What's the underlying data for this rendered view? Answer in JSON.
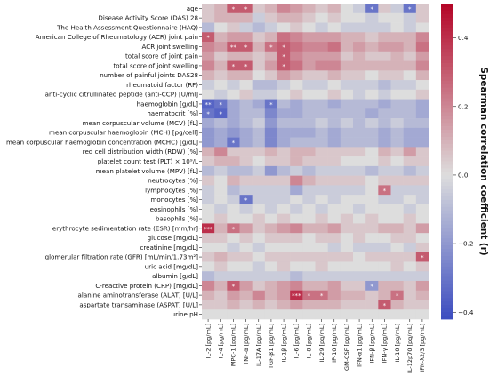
{
  "chart_data": {
    "type": "heatmap",
    "rows": [
      "age",
      "Disease Activity Score (DAS) 28",
      "The Health Assessment Questionnaire (HAQ)",
      "American College of Rheumatology (ACR) joint pain",
      "ACR joint swelling",
      "total score of  joint pain",
      "total score of joint swelling",
      "number of painful joints DAS28",
      "rheumatoid factor (RF)",
      "anti-cyclic citrullinated peptide (anti-CCP) [U/ml]",
      "haemoglobin [g/dL]",
      "haematocrit [%]",
      "mean corpuscular volume (MCV) [fL]",
      "mean corpuscular haemoglobin (MCH) [pg/cell]",
      "mean corpuscular haemoglobin concentration (MCHC) [g/dL]",
      "red cell distribution width (RDW) [%]",
      "platelet count test (PLT) × 10⁹/L",
      "mean platelet volume (MPV) [fL]",
      "neutrocytes [%]",
      "lymphocytes [%]",
      "monocytes [%]",
      "eosinophils [%]",
      "basophils [%]",
      "erythrocyte sedimentation rate (ESR) [mm/hr]",
      "glucose [mg/dL]",
      "creatinine [mg/dL]",
      "glomerular filtration rate (GFR) [mL/min/1.73m²]",
      "uric acid [mg/dL]",
      "albumin [g/dL]",
      "C-reactive protein (CRP) [mg/dL]",
      "alanine aminotransferase (ALAT)  [U/L]",
      "aspartate transaminase (ASPAT) [U/L]",
      "urine pH"
    ],
    "columns": [
      "IL-2 [pg/mL]",
      "IL-4 [pg/mL]",
      "MPC-1 [pg/mL]",
      "TNF-α [pg/mL]",
      "IL-17A [pg/mL]",
      "TGF-β1 [pg/mL]",
      "IL-1β [pg/mL]",
      "IL-6 [pg/mL]",
      "IL-8 [pg/mL]",
      "IL-29 [pg/mL]",
      "IP-10 [pg/mL]",
      "GM-CSF [pg/mL]",
      "IFN-α1 [pg/mL]",
      "IFN-β [pg/mL]",
      "IFN-γ [pg/mL]",
      "IL-10 [pg/mL]",
      "IL-12p70 [pg/mL]",
      "IFN-λ2/3 [pg/mL]"
    ],
    "values": [
      [
        0.05,
        0.1,
        0.3,
        0.3,
        0.05,
        0.1,
        0.2,
        0.15,
        0.1,
        0.05,
        0.1,
        0.0,
        -0.05,
        -0.3,
        0.05,
        -0.05,
        -0.3,
        0.05
      ],
      [
        0.05,
        0.1,
        0.1,
        0.1,
        -0.05,
        0.05,
        0.1,
        0.1,
        0.05,
        0.0,
        0.05,
        0.0,
        0.0,
        -0.05,
        0.0,
        0.0,
        -0.05,
        0.05
      ],
      [
        -0.1,
        0.0,
        0.05,
        -0.05,
        -0.1,
        -0.05,
        0.0,
        0.05,
        0.0,
        -0.05,
        0.0,
        -0.05,
        -0.05,
        -0.05,
        -0.05,
        0.0,
        -0.05,
        0.0
      ],
      [
        0.3,
        0.1,
        0.15,
        0.15,
        0.05,
        0.1,
        0.25,
        0.2,
        0.15,
        0.15,
        0.15,
        0.1,
        0.1,
        0.05,
        0.1,
        0.1,
        0.1,
        0.2
      ],
      [
        0.2,
        0.15,
        0.3,
        0.3,
        0.1,
        0.25,
        0.3,
        0.25,
        0.2,
        0.2,
        0.25,
        0.1,
        0.15,
        0.1,
        0.15,
        0.15,
        0.1,
        0.25
      ],
      [
        0.15,
        0.05,
        0.1,
        0.1,
        0.05,
        0.1,
        0.3,
        0.2,
        0.15,
        0.15,
        0.15,
        0.05,
        0.1,
        0.05,
        0.05,
        0.1,
        0.05,
        0.15
      ],
      [
        0.2,
        0.1,
        0.3,
        0.3,
        0.05,
        0.15,
        0.3,
        0.25,
        0.15,
        0.2,
        0.2,
        0.1,
        0.1,
        0.1,
        0.1,
        0.1,
        0.1,
        0.2
      ],
      [
        0.1,
        0.05,
        0.1,
        0.1,
        0.0,
        0.05,
        0.15,
        0.1,
        0.05,
        0.05,
        0.1,
        0.05,
        0.05,
        0.0,
        0.05,
        0.05,
        0.0,
        0.1
      ],
      [
        -0.05,
        0.0,
        -0.05,
        0.0,
        -0.1,
        -0.1,
        -0.05,
        0.0,
        -0.05,
        -0.05,
        0.0,
        -0.05,
        -0.05,
        -0.05,
        -0.1,
        -0.05,
        -0.05,
        0.0
      ],
      [
        0.0,
        -0.05,
        0.0,
        0.05,
        -0.05,
        -0.05,
        0.0,
        0.05,
        0.0,
        0.0,
        0.05,
        0.0,
        -0.05,
        0.0,
        -0.05,
        0.0,
        0.0,
        0.05
      ],
      [
        -0.35,
        -0.3,
        -0.15,
        -0.1,
        -0.15,
        -0.3,
        -0.1,
        -0.15,
        -0.1,
        -0.1,
        -0.15,
        -0.1,
        -0.1,
        -0.1,
        -0.15,
        -0.1,
        -0.1,
        -0.15
      ],
      [
        -0.3,
        -0.35,
        -0.15,
        -0.1,
        -0.1,
        -0.25,
        -0.15,
        -0.15,
        -0.1,
        -0.1,
        -0.1,
        -0.1,
        -0.1,
        -0.15,
        -0.1,
        -0.1,
        -0.1,
        -0.15
      ],
      [
        -0.15,
        -0.1,
        -0.15,
        -0.1,
        -0.05,
        -0.2,
        -0.1,
        -0.1,
        -0.1,
        -0.05,
        -0.1,
        -0.05,
        -0.1,
        -0.05,
        -0.1,
        -0.05,
        -0.1,
        -0.1
      ],
      [
        -0.2,
        -0.15,
        -0.2,
        -0.15,
        -0.1,
        -0.25,
        -0.15,
        -0.15,
        -0.15,
        -0.1,
        -0.15,
        -0.1,
        -0.1,
        -0.1,
        -0.15,
        -0.1,
        -0.15,
        -0.15
      ],
      [
        -0.2,
        -0.15,
        -0.3,
        -0.15,
        -0.1,
        -0.25,
        -0.15,
        -0.1,
        -0.1,
        -0.1,
        -0.15,
        -0.1,
        -0.1,
        -0.1,
        -0.15,
        -0.1,
        -0.15,
        -0.15
      ],
      [
        0.1,
        0.2,
        0.05,
        0.05,
        0.05,
        0.1,
        0.05,
        0.1,
        0.1,
        0.05,
        0.05,
        0.05,
        0.05,
        0.0,
        0.1,
        0.05,
        0.15,
        0.05
      ],
      [
        0.05,
        0.1,
        0.1,
        0.05,
        0.0,
        0.05,
        0.05,
        0.1,
        0.05,
        0.05,
        0.05,
        0.0,
        0.0,
        0.0,
        0.05,
        0.0,
        0.05,
        0.05
      ],
      [
        -0.1,
        -0.05,
        -0.1,
        -0.1,
        -0.05,
        -0.2,
        -0.1,
        -0.05,
        -0.1,
        -0.05,
        -0.05,
        -0.05,
        -0.05,
        -0.1,
        -0.05,
        -0.05,
        -0.1,
        -0.05
      ],
      [
        0.05,
        0.0,
        0.1,
        0.05,
        0.05,
        0.05,
        0.05,
        0.2,
        0.1,
        0.05,
        0.05,
        0.05,
        0.05,
        0.0,
        0.05,
        0.05,
        0.05,
        0.05
      ],
      [
        -0.05,
        0.0,
        -0.1,
        -0.05,
        -0.05,
        -0.05,
        -0.05,
        -0.15,
        -0.05,
        -0.05,
        -0.05,
        -0.05,
        -0.05,
        0.0,
        0.25,
        -0.05,
        -0.05,
        -0.05
      ],
      [
        -0.05,
        0.0,
        -0.05,
        -0.3,
        -0.05,
        -0.05,
        -0.05,
        0.0,
        -0.05,
        0.0,
        -0.05,
        0.0,
        0.0,
        0.0,
        -0.05,
        -0.05,
        0.0,
        -0.05
      ],
      [
        0.0,
        -0.05,
        0.0,
        -0.05,
        0.0,
        -0.05,
        0.0,
        -0.05,
        0.0,
        -0.05,
        0.0,
        0.0,
        -0.05,
        0.0,
        0.0,
        0.0,
        -0.05,
        0.0
      ],
      [
        0.0,
        0.05,
        0.0,
        0.0,
        0.05,
        0.0,
        0.05,
        0.0,
        0.0,
        0.05,
        0.0,
        0.05,
        0.0,
        0.05,
        0.0,
        0.0,
        0.05,
        0.0
      ],
      [
        0.4,
        0.1,
        0.25,
        0.15,
        0.05,
        0.1,
        0.15,
        0.2,
        0.1,
        0.1,
        0.15,
        0.05,
        0.05,
        0.05,
        0.1,
        0.1,
        0.05,
        0.15
      ],
      [
        0.05,
        0.05,
        0.0,
        0.05,
        0.0,
        0.05,
        0.05,
        0.05,
        0.0,
        0.05,
        0.05,
        0.0,
        0.05,
        0.0,
        0.0,
        0.05,
        0.05,
        0.0
      ],
      [
        0.0,
        0.0,
        -0.05,
        0.0,
        -0.05,
        0.0,
        0.0,
        0.0,
        0.0,
        0.0,
        -0.05,
        0.0,
        -0.05,
        -0.05,
        -0.05,
        0.0,
        -0.05,
        0.05
      ],
      [
        0.05,
        0.1,
        0.05,
        0.05,
        0.0,
        0.05,
        0.05,
        0.05,
        0.05,
        0.05,
        0.05,
        0.05,
        0.0,
        0.05,
        0.05,
        0.05,
        0.05,
        0.3
      ],
      [
        0.0,
        0.05,
        0.0,
        0.0,
        -0.05,
        0.0,
        0.05,
        0.0,
        0.0,
        0.05,
        0.0,
        0.0,
        0.0,
        0.0,
        0.0,
        0.05,
        0.0,
        0.05
      ],
      [
        -0.1,
        -0.05,
        -0.05,
        -0.05,
        -0.05,
        -0.05,
        -0.05,
        -0.1,
        -0.05,
        -0.05,
        -0.05,
        -0.05,
        -0.05,
        -0.05,
        -0.05,
        -0.05,
        -0.05,
        -0.05
      ],
      [
        0.2,
        0.1,
        0.3,
        0.15,
        0.05,
        0.1,
        0.15,
        0.2,
        0.1,
        0.1,
        0.15,
        0.05,
        0.05,
        -0.2,
        0.1,
        0.1,
        0.05,
        0.15
      ],
      [
        0.1,
        0.05,
        0.15,
        0.1,
        0.2,
        0.1,
        0.15,
        0.4,
        0.25,
        0.25,
        0.15,
        0.1,
        0.1,
        0.05,
        0.1,
        0.25,
        0.05,
        0.1
      ],
      [
        0.05,
        0.05,
        0.1,
        0.05,
        0.1,
        0.05,
        0.1,
        0.15,
        0.1,
        0.1,
        0.1,
        0.05,
        0.05,
        0.05,
        0.3,
        0.1,
        0.05,
        0.05
      ],
      [
        0.0,
        0.0,
        0.0,
        0.0,
        0.0,
        0.0,
        0.0,
        0.0,
        0.0,
        0.0,
        0.0,
        0.0,
        0.0,
        0.0,
        0.0,
        0.0,
        0.0,
        0.0
      ]
    ],
    "annotations": [
      {
        "row": 0,
        "col": 2,
        "text": "*"
      },
      {
        "row": 0,
        "col": 3,
        "text": "*"
      },
      {
        "row": 0,
        "col": 13,
        "text": "*"
      },
      {
        "row": 0,
        "col": 16,
        "text": "*"
      },
      {
        "row": 3,
        "col": 0,
        "text": "*"
      },
      {
        "row": 4,
        "col": 2,
        "text": "**"
      },
      {
        "row": 4,
        "col": 3,
        "text": "*"
      },
      {
        "row": 4,
        "col": 5,
        "text": "*"
      },
      {
        "row": 4,
        "col": 6,
        "text": "*"
      },
      {
        "row": 5,
        "col": 6,
        "text": "*"
      },
      {
        "row": 6,
        "col": 2,
        "text": "*"
      },
      {
        "row": 6,
        "col": 3,
        "text": "*"
      },
      {
        "row": 6,
        "col": 6,
        "text": "*"
      },
      {
        "row": 10,
        "col": 0,
        "text": "**"
      },
      {
        "row": 10,
        "col": 1,
        "text": "*"
      },
      {
        "row": 10,
        "col": 5,
        "text": "*"
      },
      {
        "row": 11,
        "col": 0,
        "text": "*"
      },
      {
        "row": 11,
        "col": 1,
        "text": "*"
      },
      {
        "row": 14,
        "col": 2,
        "text": "*"
      },
      {
        "row": 19,
        "col": 14,
        "text": "*"
      },
      {
        "row": 20,
        "col": 3,
        "text": "*"
      },
      {
        "row": 23,
        "col": 0,
        "text": "***"
      },
      {
        "row": 23,
        "col": 2,
        "text": "*"
      },
      {
        "row": 26,
        "col": 17,
        "text": "*"
      },
      {
        "row": 29,
        "col": 2,
        "text": "*"
      },
      {
        "row": 29,
        "col": 13,
        "text": "*"
      },
      {
        "row": 30,
        "col": 7,
        "text": "***"
      },
      {
        "row": 30,
        "col": 8,
        "text": "*"
      },
      {
        "row": 30,
        "col": 9,
        "text": "*"
      },
      {
        "row": 30,
        "col": 15,
        "text": "*"
      },
      {
        "row": 31,
        "col": 14,
        "text": "*"
      }
    ],
    "colorbar": {
      "label": "Spearman correlation coefficient (r)",
      "range": [
        -0.42,
        0.5
      ],
      "ticks": [
        -0.4,
        -0.2,
        0.0,
        0.2,
        0.4
      ],
      "tick_labels": [
        "−0.4",
        "−0.2",
        "0.0",
        "0.2",
        "0.4"
      ],
      "colormap": "coolwarm"
    }
  }
}
